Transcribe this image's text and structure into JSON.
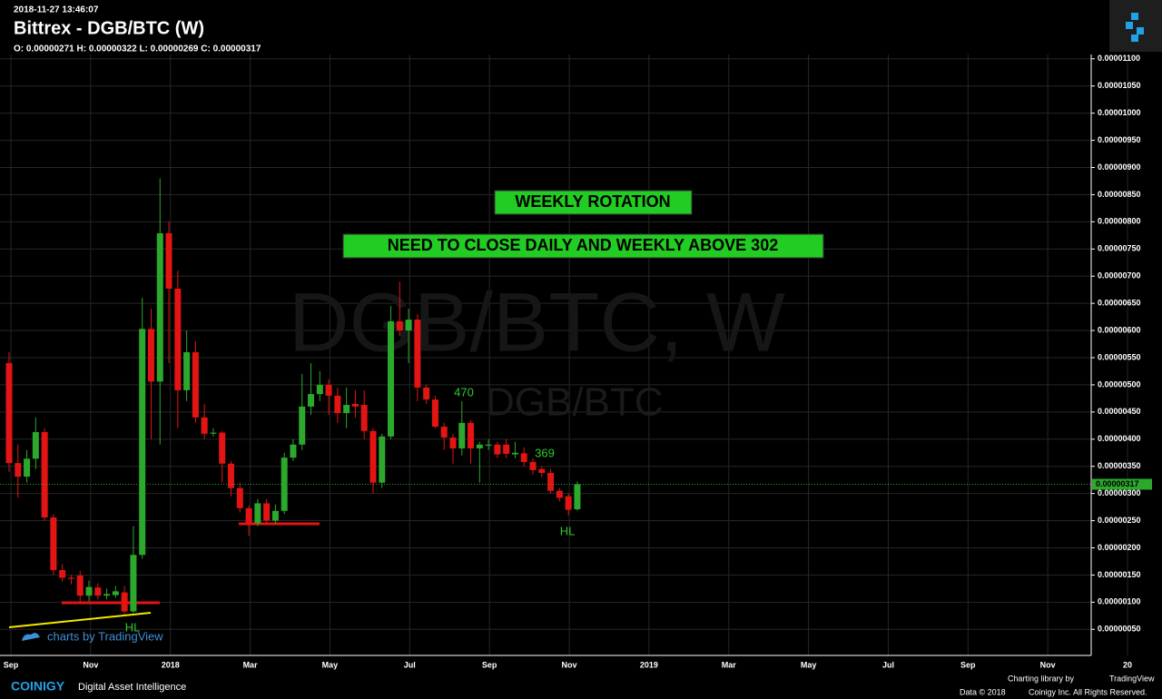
{
  "header": {
    "timestamp": "2018-11-27 13:46:07",
    "title": "Bittrex - DGB/BTC (W)",
    "ohlc": "O: 0.00000271 H: 0.00000322 L: 0.00000269 C: 0.00000317"
  },
  "chart_data": {
    "type": "candlestick",
    "watermark": [
      "DGB/BTC, W",
      "DGB/BTC"
    ],
    "annotations": [
      "WEEKLY ROTATION",
      "NEED TO CLOSE DAILY AND WEEKLY ABOVE 302",
      "470",
      "369",
      "HL",
      "HL"
    ],
    "series": {
      "up_color": "#2ca82c",
      "down_color": "#e31414",
      "open": [
        5.4e-06,
        3.56e-06,
        3.31e-06,
        3.64e-06,
        4.13e-06,
        2.56e-06,
        1.59e-06,
        1.45e-06,
        1.49e-06,
        1.12e-06,
        1.27e-06,
        1.12e-06,
        1.13e-06,
        1.18e-06,
        8.3e-07,
        1.87e-06,
        6.03e-06,
        5.06e-06,
        7.79e-06,
        6.77e-06,
        4.9e-06,
        5.6e-06,
        4.4e-06,
        4.1e-06,
        4.12e-06,
        3.55e-06,
        3.1e-06,
        2.73e-06,
        2.45e-06,
        2.82e-06,
        2.5e-06,
        2.68e-06,
        3.66e-06,
        3.9e-06,
        4.6e-06,
        4.83e-06,
        5e-06,
        4.8e-06,
        4.48e-06,
        4.65e-06,
        4.63e-06,
        4.15e-06,
        3.2e-06,
        4.05e-06,
        6.17e-06,
        6e-06,
        6.2e-06,
        4.95e-06,
        4.73e-06,
        4.23e-06,
        4.03e-06,
        3.83e-06,
        4.3e-06,
        3.83e-06,
        3.88e-06,
        3.9e-06,
        3.9e-06,
        3.72e-06,
        3.74e-06,
        3.58e-06,
        3.45e-06,
        3.38e-06,
        3.05e-06,
        2.95e-06,
        2.71e-06
      ],
      "high": [
        5.6e-06,
        3.9e-06,
        3.8e-06,
        4.4e-06,
        4.2e-06,
        2.62e-06,
        1.7e-06,
        1.5e-06,
        1.58e-06,
        1.4e-06,
        1.35e-06,
        1.25e-06,
        1.3e-06,
        1.3e-06,
        2.4e-06,
        6.6e-06,
        6.4e-06,
        8.8e-06,
        8e-06,
        7.1e-06,
        6e-06,
        5.8e-06,
        4.65e-06,
        4.2e-06,
        4.15e-06,
        3.6e-06,
        3.2e-06,
        2.78e-06,
        2.9e-06,
        2.9e-06,
        2.8e-06,
        3.75e-06,
        4e-06,
        5.2e-06,
        5.4e-06,
        5.25e-06,
        5.1e-06,
        4.95e-06,
        4.95e-06,
        4.9e-06,
        4.9e-06,
        4.2e-06,
        4.1e-06,
        6.45e-06,
        6.9e-06,
        6.4e-06,
        6.3e-06,
        5e-06,
        4.8e-06,
        4.3e-06,
        4.1e-06,
        4.7e-06,
        4.35e-06,
        3.95e-06,
        4e-06,
        3.95e-06,
        4e-06,
        3.95e-06,
        3.85e-06,
        3.65e-06,
        3.5e-06,
        3.45e-06,
        3.1e-06,
        3e-06,
        3.22e-06
      ],
      "low": [
        3.4e-06,
        2.92e-06,
        3.2e-06,
        3.45e-06,
        2.5e-06,
        1.5e-06,
        1.38e-06,
        1.33e-06,
        1e-06,
        1.02e-06,
        1.05e-06,
        1.05e-06,
        1.08e-06,
        7.8e-07,
        8e-07,
        1.8e-06,
        4e-06,
        3.9e-06,
        5.4e-06,
        4.2e-06,
        4.7e-06,
        4.3e-06,
        4e-06,
        4.05e-06,
        3.2e-06,
        2.95e-06,
        2.65e-06,
        2.22e-06,
        2.4e-06,
        2.44e-06,
        2.44e-06,
        2.62e-06,
        3.6e-06,
        3.8e-06,
        4.45e-06,
        4.7e-06,
        4.45e-06,
        4.3e-06,
        4.2e-06,
        4.4e-06,
        4e-06,
        3e-06,
        3.1e-06,
        4e-06,
        5.9e-06,
        5.4e-06,
        4.7e-06,
        4.65e-06,
        4.2e-06,
        3.8e-06,
        3.55e-06,
        3.7e-06,
        3.55e-06,
        3.2e-06,
        3.8e-06,
        3.65e-06,
        3.65e-06,
        3.65e-06,
        3.5e-06,
        3.35e-06,
        3.3e-06,
        3e-06,
        2.85e-06,
        2.6e-06,
        2.69e-06
      ],
      "close": [
        3.56e-06,
        3.31e-06,
        3.64e-06,
        4.13e-06,
        2.56e-06,
        1.59e-06,
        1.45e-06,
        1.43e-06,
        1.12e-06,
        1.28e-06,
        1.12e-06,
        1.15e-06,
        1.2e-06,
        8.3e-07,
        1.87e-06,
        6.03e-06,
        5.06e-06,
        7.79e-06,
        6.77e-06,
        4.9e-06,
        5.6e-06,
        4.4e-06,
        4.1e-06,
        4.12e-06,
        3.55e-06,
        3.1e-06,
        2.73e-06,
        2.45e-06,
        2.82e-06,
        2.5e-06,
        2.68e-06,
        3.66e-06,
        3.9e-06,
        4.6e-06,
        4.83e-06,
        5e-06,
        4.8e-06,
        4.48e-06,
        4.63e-06,
        4.6e-06,
        4.15e-06,
        3.2e-06,
        4.05e-06,
        6.17e-06,
        6e-06,
        6.2e-06,
        4.95e-06,
        4.73e-06,
        4.23e-06,
        4.03e-06,
        3.83e-06,
        4.3e-06,
        3.83e-06,
        3.9e-06,
        3.9e-06,
        3.72e-06,
        3.73e-06,
        3.75e-06,
        3.58e-06,
        3.43e-06,
        3.38e-06,
        3.05e-06,
        2.92e-06,
        2.7e-06,
        3.17e-06
      ]
    },
    "last_price": {
      "value": 3.17e-06,
      "label": "0.00000317"
    },
    "xtick_labels": [
      "Sep",
      "Nov",
      "2018",
      "Mar",
      "May",
      "Jul",
      "Sep",
      "Nov",
      "2019",
      "Mar",
      "May",
      "Jul",
      "Sep",
      "Nov",
      "20"
    ],
    "ylim": [
      2e-08,
      1.108e-05
    ],
    "yticks": [
      {
        "value": 5e-07,
        "label": "0.00000050"
      },
      {
        "value": 1e-06,
        "label": "0.00000100"
      },
      {
        "value": 1.5e-06,
        "label": "0.00000150"
      },
      {
        "value": 2e-06,
        "label": "0.00000200"
      },
      {
        "value": 2.5e-06,
        "label": "0.00000250"
      },
      {
        "value": 3e-06,
        "label": "0.00000300"
      },
      {
        "value": 3.5e-06,
        "label": "0.00000350"
      },
      {
        "value": 4e-06,
        "label": "0.00000400"
      },
      {
        "value": 4.5e-06,
        "label": "0.00000450"
      },
      {
        "value": 5e-06,
        "label": "0.00000500"
      },
      {
        "value": 5.5e-06,
        "label": "0.00000550"
      },
      {
        "value": 6e-06,
        "label": "0.00000600"
      },
      {
        "value": 6.5e-06,
        "label": "0.00000650"
      },
      {
        "value": 7e-06,
        "label": "0.00000700"
      },
      {
        "value": 7.5e-06,
        "label": "0.00000750"
      },
      {
        "value": 8e-06,
        "label": "0.00000800"
      },
      {
        "value": 8.5e-06,
        "label": "0.00000850"
      },
      {
        "value": 9e-06,
        "label": "0.00000900"
      },
      {
        "value": 9.5e-06,
        "label": "0.00000950"
      },
      {
        "value": 1e-05,
        "label": "0.00001000"
      },
      {
        "value": 1.05e-05,
        "label": "0.00001050"
      },
      {
        "value": 1.1e-05,
        "label": "0.00001100"
      }
    ],
    "grid": true
  },
  "footer": {
    "tv_badge": "charts by TradingView",
    "brand": "COINIGY",
    "tagline": "Digital Asset Intelligence",
    "library": "Charting library by",
    "library_name": "TradingView",
    "data": "Data © 2018",
    "rights": "Coinigy Inc. All Rights Reserved."
  }
}
